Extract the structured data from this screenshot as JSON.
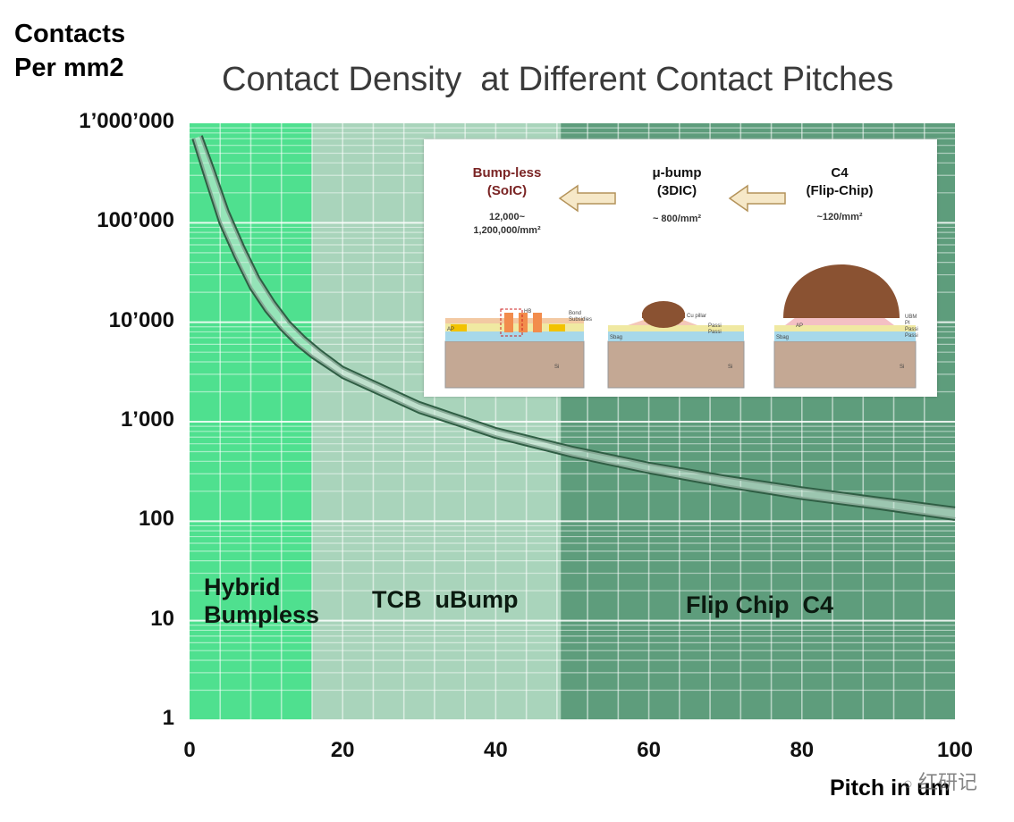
{
  "chart_data": {
    "type": "line",
    "title": "Contact Density  at Different Contact Pitches",
    "ylabel_line1": "Contacts",
    "ylabel_line2": "Per mm2",
    "xlabel": "Pitch in um",
    "yscale": "log",
    "ylim": [
      1,
      1000000
    ],
    "xlim": [
      0,
      100
    ],
    "y_ticks": [
      {
        "value": 1000000,
        "label": "1’000’000"
      },
      {
        "value": 100000,
        "label": "100’000"
      },
      {
        "value": 10000,
        "label": "10’000"
      },
      {
        "value": 1000,
        "label": "1’000"
      },
      {
        "value": 100,
        "label": "100"
      },
      {
        "value": 10,
        "label": "10"
      },
      {
        "value": 1,
        "label": "1"
      }
    ],
    "x_ticks": [
      {
        "value": 0,
        "label": "0"
      },
      {
        "value": 20,
        "label": "20"
      },
      {
        "value": 40,
        "label": "40"
      },
      {
        "value": 60,
        "label": "60"
      },
      {
        "value": 80,
        "label": "80"
      },
      {
        "value": 100,
        "label": "100"
      }
    ],
    "regions": [
      {
        "name": "Hybrid Bumpless",
        "line1": "Hybrid",
        "line2": "Bumpless",
        "x_range": [
          0,
          16
        ],
        "color": "#4fe08f"
      },
      {
        "name": "TCB uBump",
        "line1": "TCB  uBump",
        "line2": "",
        "x_range": [
          16,
          48.5
        ],
        "color": "#a9d4bb"
      },
      {
        "name": "Flip Chip C4",
        "line1": "Flip Chip  C4",
        "line2": "",
        "x_range": [
          48.5,
          100
        ],
        "color": "#5e9d7c"
      }
    ],
    "series": [
      {
        "name": "lower bound",
        "x": [
          0.5,
          2,
          4,
          6,
          8,
          10,
          12,
          14,
          16,
          20,
          30,
          40,
          50,
          60,
          70,
          80,
          90,
          100
        ],
        "y": [
          700000,
          300000,
          100000,
          45000,
          22000,
          13000,
          8500,
          6000,
          4500,
          2800,
          1250,
          700,
          450,
          310,
          225,
          170,
          135,
          105
        ]
      },
      {
        "name": "upper bound",
        "x": [
          1.5,
          3,
          5,
          7,
          9,
          11,
          13,
          15,
          17,
          20,
          30,
          40,
          50,
          60,
          70,
          80,
          90,
          100
        ],
        "y": [
          750000,
          360000,
          130000,
          58000,
          28000,
          16000,
          10000,
          7000,
          5200,
          3500,
          1550,
          850,
          550,
          380,
          280,
          215,
          170,
          135
        ]
      }
    ]
  },
  "inset": {
    "columns": [
      {
        "title_line1": "Bump-less",
        "title_line2": "(SoIC)",
        "density_line1": "12,000~",
        "density_line2": "1,200,000/mm²",
        "color": "#7a2424",
        "labels": [
          "HB",
          "Bond",
          "Subsidies",
          "AP",
          "Si"
        ]
      },
      {
        "title_line1": "μ-bump",
        "title_line2": "(3DIC)",
        "density_line1": "~ 800/mm²",
        "density_line2": "",
        "color": "#111111",
        "labels": [
          "Cu pillar",
          "Passi",
          "Passi",
          "Sbag",
          "Si"
        ]
      },
      {
        "title_line1": "C4",
        "title_line2": "(Flip-Chip)",
        "density_line1": "~120/mm²",
        "density_line2": "",
        "color": "#111111",
        "labels": [
          "UBM",
          "PI",
          "Passi",
          "Passi",
          "Sbag",
          "AP",
          "Si"
        ]
      }
    ]
  },
  "watermark": "红研记",
  "colors": {
    "curve_dark": "#2f5e44",
    "curve_light": "#cfe8da",
    "arrow_fill": "#f6e8c8",
    "arrow_stroke": "#b4935a",
    "bump_brown": "#8a5232"
  }
}
